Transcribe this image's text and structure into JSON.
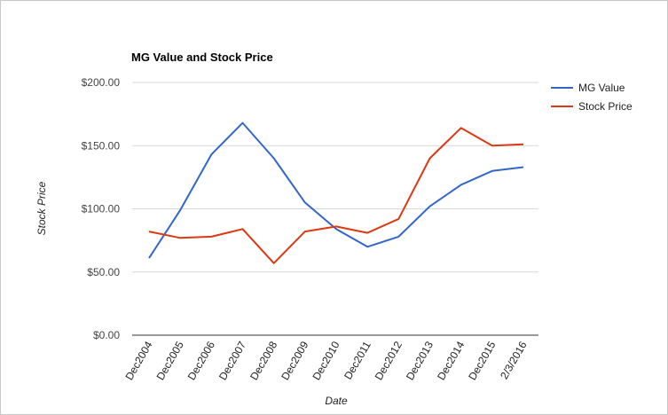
{
  "chart_data": {
    "type": "line",
    "title": "MG Value and Stock Price",
    "xlabel": "Date",
    "ylabel": "Stock Price",
    "categories": [
      "Dec2004",
      "Dec2005",
      "Dec2006",
      "Dec2007",
      "Dec2008",
      "Dec2009",
      "Dec2010",
      "Dec2011",
      "Dec2012",
      "Dec2013",
      "Dec2014",
      "Dec2015",
      "2/3/2016"
    ],
    "yticks": [
      {
        "value": 0,
        "label": "$0.00"
      },
      {
        "value": 50,
        "label": "$50.00"
      },
      {
        "value": 100,
        "label": "$100.00"
      },
      {
        "value": 150,
        "label": "$150.00"
      },
      {
        "value": 200,
        "label": "$200.00"
      }
    ],
    "ylim": [
      0,
      200
    ],
    "grid": true,
    "legend_position": "top-right",
    "series": [
      {
        "name": "MG Value",
        "color": "#3366cc",
        "values": [
          61,
          99,
          143,
          168,
          140,
          105,
          84,
          70,
          78,
          102,
          119,
          130,
          133
        ]
      },
      {
        "name": "Stock Price",
        "color": "#dc3912",
        "values": [
          82,
          77,
          78,
          84,
          57,
          82,
          86,
          81,
          92,
          140,
          164,
          150,
          151
        ]
      }
    ]
  }
}
